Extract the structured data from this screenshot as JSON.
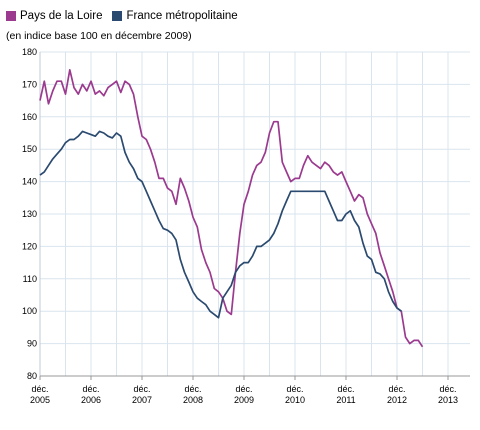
{
  "legend": {
    "items": [
      {
        "label": "Pays de la Loire",
        "color": "#9b3a8f"
      },
      {
        "label": "France métropolitaine",
        "color": "#2b4a6f"
      }
    ]
  },
  "subtitle": "(en indice base 100 en décembre 2009)",
  "chart_data": {
    "type": "line",
    "title": "",
    "xlabel": "",
    "ylabel": "",
    "ylim": [
      80,
      180
    ],
    "yticks": [
      80,
      90,
      100,
      110,
      120,
      130,
      140,
      150,
      160,
      170,
      180
    ],
    "x_axis_note": "months since décembre 2005 (0 = déc. 2005)",
    "xlim": [
      0,
      89
    ],
    "xticks": [
      {
        "x": 0,
        "top": "déc.",
        "bottom": "2005"
      },
      {
        "x": 12,
        "top": "déc.",
        "bottom": "2006"
      },
      {
        "x": 24,
        "top": "déc.",
        "bottom": "2007"
      },
      {
        "x": 36,
        "top": "déc.",
        "bottom": "2008"
      },
      {
        "x": 48,
        "top": "déc.",
        "bottom": "2009"
      },
      {
        "x": 60,
        "top": "déc.",
        "bottom": "2010"
      },
      {
        "x": 72,
        "top": "déc.",
        "bottom": "2011"
      },
      {
        "x": 84,
        "top": "déc.",
        "bottom": "2012"
      },
      {
        "x": 96,
        "top": "déc.",
        "bottom": "2013"
      }
    ],
    "grid": true,
    "legend_position": "top-left",
    "series": [
      {
        "name": "Pays de la Loire",
        "color": "#9b3a8f",
        "values": [
          165,
          171,
          164,
          168,
          171,
          171,
          167,
          174.5,
          169,
          167,
          170,
          168,
          171,
          167,
          168,
          166.5,
          169,
          170,
          171,
          167.5,
          171,
          170,
          167,
          160,
          154,
          153,
          150,
          146,
          141,
          141,
          138,
          137,
          133,
          141,
          138,
          134,
          129,
          126,
          119,
          115,
          112,
          107,
          106,
          104,
          100,
          99,
          112,
          124,
          133,
          137,
          142,
          145,
          146,
          149,
          155,
          158.5,
          158.5,
          146,
          143,
          140,
          141,
          141,
          145,
          148,
          146,
          145,
          144,
          146,
          145,
          143,
          142,
          143,
          140,
          137,
          134,
          136,
          135,
          130,
          127,
          124,
          118,
          114,
          110,
          106,
          101,
          100,
          92,
          90,
          91,
          91,
          89
        ]
      },
      {
        "name": "France métropolitaine",
        "color": "#2b4a6f",
        "values": [
          142,
          143,
          145,
          147,
          148.5,
          150,
          152,
          153,
          153,
          154,
          155.5,
          155,
          154.5,
          154,
          155.5,
          155,
          154,
          153.5,
          155,
          154,
          149,
          146,
          144,
          141,
          140,
          137,
          134,
          131,
          128,
          125.5,
          125,
          124,
          122,
          116,
          112,
          109,
          106,
          104,
          103,
          102,
          100,
          99,
          98,
          104,
          106,
          108,
          112,
          114,
          115,
          115,
          117,
          120,
          120,
          121,
          122,
          124,
          127,
          131,
          134,
          137,
          137,
          137,
          137,
          137,
          137,
          137,
          137,
          137,
          134,
          131,
          128,
          128,
          130,
          131,
          128,
          126,
          121,
          117,
          116,
          112,
          111.5,
          110,
          106,
          103,
          101,
          100
        ]
      }
    ]
  }
}
